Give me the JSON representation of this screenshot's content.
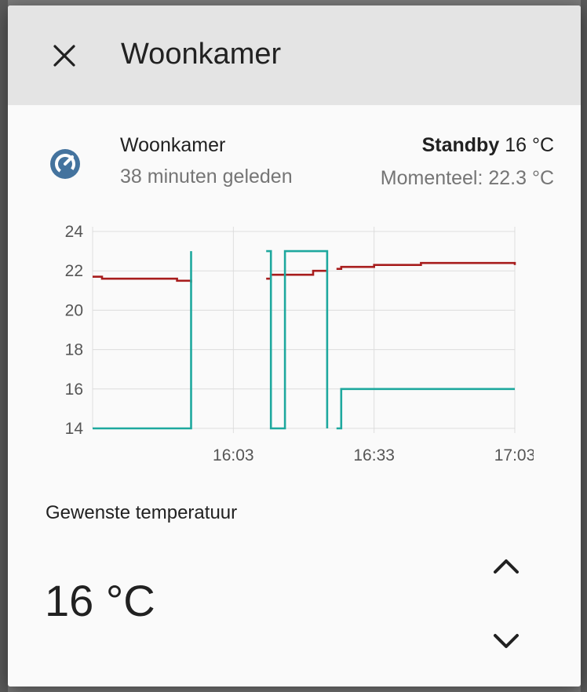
{
  "dialog": {
    "title": "Woonkamer",
    "close_icon": "close-icon"
  },
  "entity": {
    "icon": "thermostat-icon",
    "icon_color": "#44739e",
    "name": "Woonkamer",
    "last_changed": "38 minuten geleden",
    "state": "Standby",
    "state_value": "16 °C",
    "current_label": "Momenteel: 22.3 °C"
  },
  "chart_data": {
    "type": "line",
    "y_ticks": [
      "24",
      "22",
      "20",
      "18",
      "16",
      "14"
    ],
    "x_ticks": [
      "16:03",
      "16:33",
      "17:03"
    ],
    "ylim": [
      14,
      24
    ],
    "xlim": [
      "15:33",
      "17:03"
    ],
    "grid": true,
    "series": [
      {
        "color": "#a81d1d",
        "step": true,
        "segments": [
          [
            [
              "15:33",
              21.7
            ],
            [
              "15:35",
              21.7
            ],
            [
              "15:35",
              21.6
            ],
            [
              "15:51",
              21.6
            ],
            [
              "15:51",
              21.5
            ],
            [
              "15:54",
              21.5
            ],
            [
              "15:54",
              21.4
            ]
          ],
          [
            [
              "16:10",
              21.6
            ],
            [
              "16:11",
              21.6
            ],
            [
              "16:11",
              21.8
            ],
            [
              "16:20",
              21.8
            ],
            [
              "16:20",
              22.0
            ],
            [
              "16:23",
              22.0
            ]
          ],
          [
            [
              "16:25",
              22.1
            ],
            [
              "16:26",
              22.1
            ],
            [
              "16:26",
              22.2
            ],
            [
              "16:33",
              22.2
            ],
            [
              "16:33",
              22.3
            ],
            [
              "16:43",
              22.3
            ],
            [
              "16:43",
              22.4
            ],
            [
              "17:03",
              22.4
            ],
            [
              "17:03",
              22.3
            ]
          ]
        ]
      },
      {
        "color": "#1ea89e",
        "step": true,
        "segments": [
          [
            [
              "15:33",
              14
            ],
            [
              "15:54",
              14
            ],
            [
              "15:54",
              23
            ]
          ],
          [
            [
              "16:10",
              23
            ],
            [
              "16:11",
              23
            ],
            [
              "16:11",
              14
            ],
            [
              "16:14",
              14
            ],
            [
              "16:14",
              23
            ],
            [
              "16:23",
              23
            ],
            [
              "16:23",
              14
            ]
          ],
          [
            [
              "16:25",
              14
            ],
            [
              "16:26",
              14
            ],
            [
              "16:26",
              16
            ],
            [
              "17:03",
              16
            ]
          ]
        ]
      }
    ]
  },
  "target": {
    "label": "Gewenste temperatuur",
    "value": "16 °C",
    "up_icon": "chevron-up-icon",
    "down_icon": "chevron-down-icon"
  }
}
